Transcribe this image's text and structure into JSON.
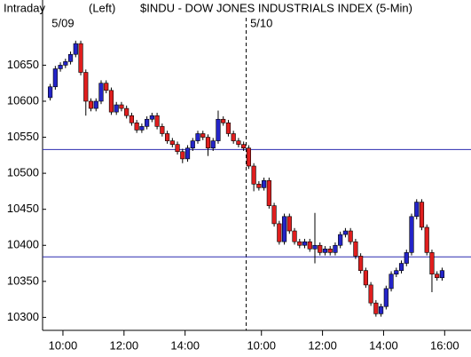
{
  "chart_data": {
    "type": "candlestick",
    "title": "$INDU - DOW JONES INDUSTRIALS INDEX (5-Min)",
    "period_label": "Intraday",
    "axis_side_label": "(Left)",
    "up_color": "#2424c8",
    "down_color": "#e01e1e",
    "line_color": "#2b2bb0",
    "open": [
      10605,
      10620,
      10645,
      10650,
      10655,
      10665,
      10680,
      10640,
      10600,
      10590,
      10600,
      10625,
      10615,
      10585,
      10595,
      10590,
      10580,
      10570,
      10560,
      10565,
      10575,
      10580,
      10565,
      10555,
      10545,
      10540,
      10530,
      10520,
      10535,
      10545,
      10555,
      10550,
      10535,
      10545,
      10575,
      10570,
      10555,
      10545,
      10540,
      10535,
      10510,
      10485,
      10480,
      10490,
      10455,
      10430,
      10405,
      10440,
      10420,
      10405,
      10400,
      10405,
      10395,
      10400,
      10390,
      10395,
      10390,
      10400,
      10415,
      10420,
      10405,
      10385,
      10365,
      10345,
      10320,
      10305,
      10315,
      10340,
      10360,
      10365,
      10375,
      10390,
      10440,
      10460,
      10425,
      10390,
      10360,
      10355
    ],
    "high": [
      10624,
      10649,
      10654,
      10659,
      10669,
      10684,
      10684,
      10644,
      10604,
      10604,
      10629,
      10629,
      10619,
      10599,
      10599,
      10594,
      10584,
      10574,
      10569,
      10579,
      10584,
      10584,
      10569,
      10559,
      10549,
      10544,
      10534,
      10539,
      10549,
      10559,
      10559,
      10554,
      10549,
      10587,
      10579,
      10574,
      10559,
      10549,
      10544,
      10539,
      10514,
      10489,
      10494,
      10494,
      10459,
      10434,
      10444,
      10444,
      10424,
      10409,
      10409,
      10409,
      10445,
      10404,
      10399,
      10399,
      10404,
      10419,
      10424,
      10424,
      10409,
      10389,
      10369,
      10349,
      10324,
      10319,
      10344,
      10364,
      10369,
      10379,
      10394,
      10444,
      10464,
      10464,
      10429,
      10394,
      10364,
      10369
    ],
    "low": [
      10601,
      10616,
      10641,
      10646,
      10651,
      10661,
      10636,
      10580,
      10586,
      10586,
      10596,
      10611,
      10581,
      10581,
      10586,
      10576,
      10566,
      10556,
      10556,
      10561,
      10571,
      10561,
      10551,
      10541,
      10536,
      10526,
      10514,
      10516,
      10531,
      10541,
      10546,
      10524,
      10531,
      10541,
      10566,
      10551,
      10541,
      10536,
      10531,
      10506,
      10475,
      10476,
      10476,
      10451,
      10426,
      10401,
      10401,
      10416,
      10401,
      10396,
      10396,
      10391,
      10375,
      10386,
      10386,
      10386,
      10386,
      10396,
      10411,
      10401,
      10381,
      10361,
      10341,
      10316,
      10301,
      10301,
      10311,
      10336,
      10356,
      10361,
      10371,
      10386,
      10436,
      10421,
      10386,
      10335,
      10351,
      10351
    ],
    "close": [
      10620,
      10645,
      10650,
      10655,
      10665,
      10680,
      10640,
      10600,
      10590,
      10600,
      10625,
      10615,
      10585,
      10595,
      10590,
      10580,
      10570,
      10560,
      10565,
      10575,
      10580,
      10565,
      10555,
      10545,
      10540,
      10530,
      10520,
      10535,
      10545,
      10555,
      10550,
      10535,
      10545,
      10575,
      10570,
      10555,
      10545,
      10540,
      10535,
      10510,
      10485,
      10480,
      10490,
      10455,
      10430,
      10405,
      10440,
      10420,
      10405,
      10400,
      10405,
      10395,
      10400,
      10390,
      10395,
      10390,
      10400,
      10415,
      10420,
      10405,
      10385,
      10365,
      10345,
      10320,
      10305,
      10315,
      10340,
      10360,
      10365,
      10375,
      10390,
      10440,
      10460,
      10425,
      10390,
      10360,
      10355,
      10365
    ],
    "ylim": [
      10282,
      10738
    ],
    "yticks": [
      10300,
      10350,
      10400,
      10450,
      10500,
      10550,
      10600,
      10650
    ],
    "xlim": [
      -1,
      83
    ],
    "xticks": [
      {
        "value": 3,
        "label": "10:00"
      },
      {
        "value": 15,
        "label": "12:00"
      },
      {
        "value": 27,
        "label": "14:00"
      },
      {
        "value": 42,
        "label": "10:00"
      },
      {
        "value": 54,
        "label": "12:00"
      },
      {
        "value": 66,
        "label": "14:00"
      },
      {
        "value": 78,
        "label": "16:00"
      }
    ],
    "date_labels": [
      {
        "value": 3,
        "label": "5/09"
      },
      {
        "value": 42,
        "label": "5/10"
      }
    ],
    "day_divider": 39,
    "hlines": [
      10533,
      10384
    ]
  }
}
